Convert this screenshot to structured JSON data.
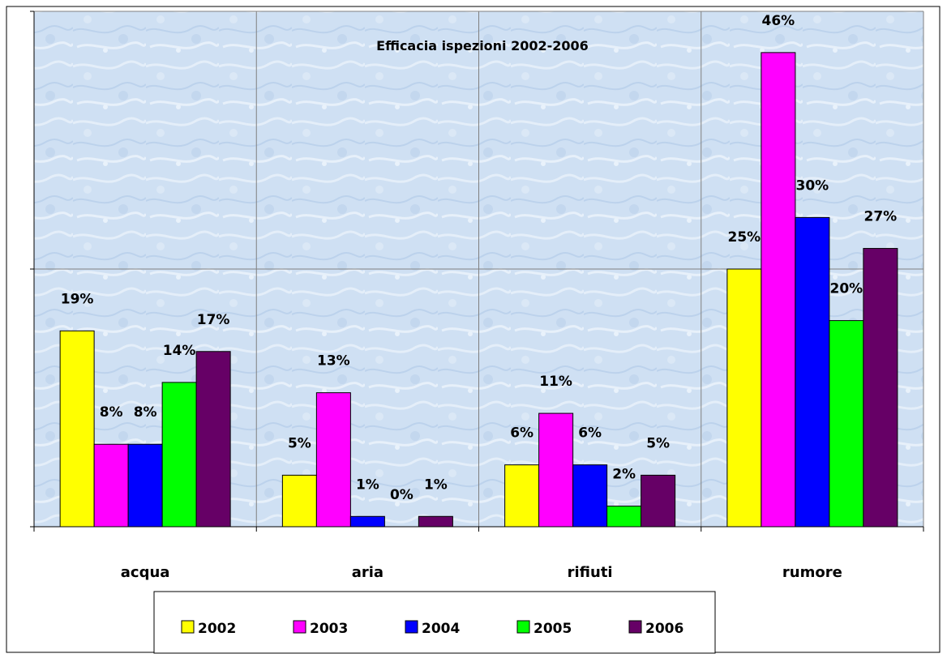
{
  "chart_data": {
    "type": "bar",
    "title": "Efficacia ispezioni 2002-2006",
    "xlabel": "",
    "ylabel": "",
    "ylim": [
      0,
      0.5
    ],
    "grid": true,
    "legend_position": "bottom",
    "categories": [
      "acqua",
      "aria",
      "rifiuti",
      "rumore"
    ],
    "series": [
      {
        "name": "2002",
        "color": "#ffff00",
        "values": [
          0.19,
          0.05,
          0.06,
          0.25
        ],
        "labels": [
          "19%",
          "5%",
          "6%",
          "25%"
        ]
      },
      {
        "name": "2003",
        "color": "#ff00ff",
        "values": [
          0.08,
          0.13,
          0.11,
          0.46
        ],
        "labels": [
          "8%",
          "13%",
          "11%",
          "46%"
        ]
      },
      {
        "name": "2004",
        "color": "#0000ff",
        "values": [
          0.08,
          0.01,
          0.06,
          0.3
        ],
        "labels": [
          "8%",
          "1%",
          "6%",
          "30%"
        ]
      },
      {
        "name": "2005",
        "color": "#00ff00",
        "values": [
          0.14,
          0.0,
          0.02,
          0.2
        ],
        "labels": [
          "14%",
          "0%",
          "2%",
          "20%"
        ]
      },
      {
        "name": "2006",
        "color": "#660066",
        "values": [
          0.17,
          0.01,
          0.05,
          0.27
        ],
        "labels": [
          "17%",
          "1%",
          "5%",
          "27%"
        ]
      }
    ]
  }
}
